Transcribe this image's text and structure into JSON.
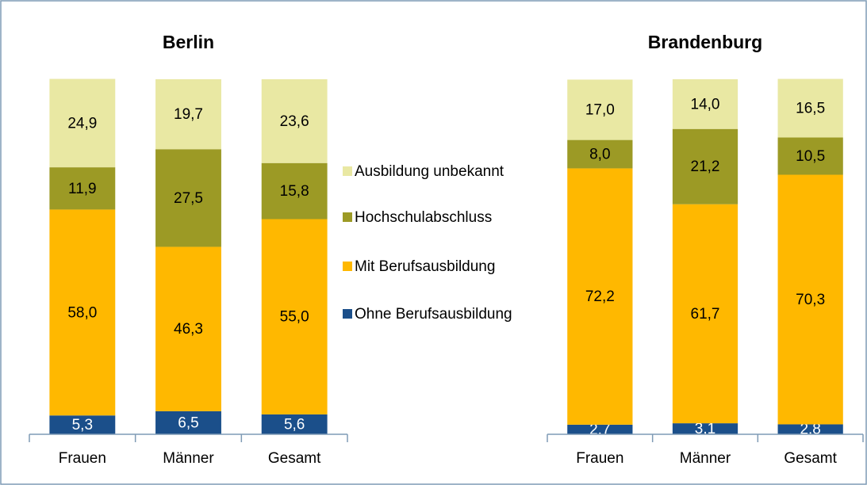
{
  "chart_data": [
    {
      "type": "stacked_bar",
      "title": "Berlin",
      "categories": [
        "Frauen",
        "Männer",
        "Gesamt"
      ],
      "ylim": [
        0,
        100
      ],
      "series": [
        {
          "name": "Ohne Berufsausbildung",
          "color": "#1b4f8a",
          "values": [
            5.3,
            6.5,
            5.6
          ],
          "value_labels": [
            "5,3",
            "6,5",
            "5,6"
          ]
        },
        {
          "name": "Mit Berufsausbildung",
          "color": "#ffb800",
          "values": [
            58.0,
            46.3,
            55.0
          ],
          "value_labels": [
            "58,0",
            "46,3",
            "55,0"
          ]
        },
        {
          "name": "Hochschulabschluss",
          "color": "#9c9a25",
          "values": [
            11.9,
            27.5,
            15.8
          ],
          "value_labels": [
            "11,9",
            "27,5",
            "15,8"
          ]
        },
        {
          "name": "Ausbildung unbekannt",
          "color": "#e9e8a3",
          "values": [
            24.9,
            19.7,
            23.6
          ],
          "value_labels": [
            "24,9",
            "19,7",
            "23,6"
          ]
        }
      ]
    },
    {
      "type": "stacked_bar",
      "title": "Brandenburg",
      "categories": [
        "Frauen",
        "Männer",
        "Gesamt"
      ],
      "ylim": [
        0,
        100
      ],
      "series": [
        {
          "color": "#1b4f8a",
          "values": [
            2.7,
            3.1,
            2.8
          ],
          "value_labels": [
            "2,7",
            "3,1",
            "2,8"
          ]
        },
        {
          "color": "#ffb800",
          "values": [
            72.2,
            61.7,
            70.3
          ],
          "value_labels": [
            "72,2",
            "61,7",
            "70,3"
          ]
        },
        {
          "color": "#9c9a25",
          "values": [
            8.0,
            21.2,
            10.5
          ],
          "value_labels": [
            "8,0",
            "21,2",
            "10,5"
          ]
        },
        {
          "color": "#e9e8a3",
          "values": [
            17.0,
            14.0,
            16.5
          ],
          "value_labels": [
            "17,0",
            "14,0",
            "16,5"
          ]
        }
      ]
    }
  ]
}
